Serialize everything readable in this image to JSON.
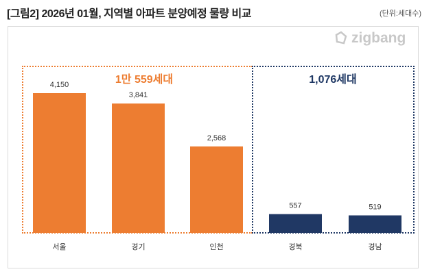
{
  "header": {
    "title": "[그림2] 2026년 01월, 지역별 아파트 분양예정 물량 비교",
    "unit": "(단위:세대수)",
    "logo": "zigbang"
  },
  "groups": [
    {
      "label": "1만 559세대",
      "color": "#ed7d31"
    },
    {
      "label": "1,076세대",
      "color": "#1f3864"
    }
  ],
  "chart_data": {
    "type": "bar",
    "categories": [
      "서울",
      "경기",
      "인천",
      "경북",
      "경남"
    ],
    "values": [
      4150,
      3841,
      2568,
      557,
      519
    ],
    "data_labels": [
      "4,150",
      "3,841",
      "2,568",
      "557",
      "519"
    ],
    "colors": [
      "#ed7d31",
      "#ed7d31",
      "#ed7d31",
      "#203864",
      "#203864"
    ],
    "ylim": [
      0,
      4150
    ],
    "grid": false
  }
}
